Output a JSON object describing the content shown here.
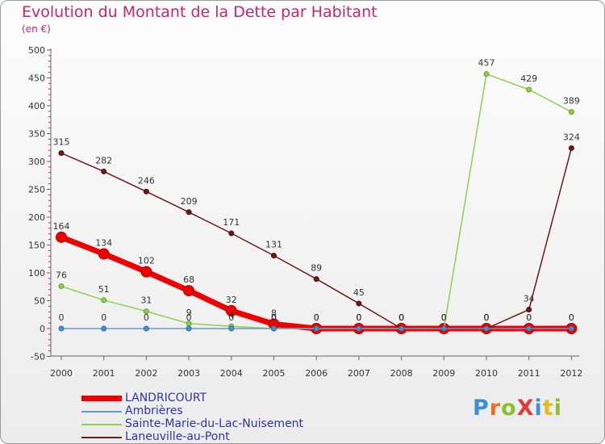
{
  "title": "Evolution du Montant de la Dette par Habitant",
  "subtitle": "(en €)",
  "logo": "ProXiti",
  "chart_data": {
    "type": "line",
    "title": "Evolution du Montant de la Dette par Habitant",
    "ylabel": "(en €)",
    "xlabel": "",
    "ylim": [
      -50,
      500
    ],
    "yticks": [
      -50,
      0,
      50,
      100,
      150,
      200,
      250,
      300,
      350,
      400,
      450,
      500
    ],
    "grid": false,
    "legend_position": "bottom-left",
    "categories": [
      "2000",
      "2001",
      "2002",
      "2003",
      "2004",
      "2005",
      "2006",
      "2007",
      "2008",
      "2009",
      "2010",
      "2011",
      "2012"
    ],
    "series": [
      {
        "name": "LANDRICOURT",
        "color": "#ee0000",
        "values": [
          164,
          134,
          102,
          68,
          32,
          8,
          0,
          0,
          0,
          0,
          0,
          0,
          0
        ],
        "labels": [
          "164",
          "134",
          "102",
          "68",
          "32",
          "8",
          "0",
          "0",
          "0",
          "0",
          "0",
          "0",
          "0"
        ]
      },
      {
        "name": "Ambrières",
        "color": "#6699cc",
        "values": [
          0,
          0,
          0,
          0,
          0,
          0,
          0,
          0,
          0,
          0,
          0,
          0,
          0
        ],
        "labels": [
          "0",
          "0",
          "0",
          "0",
          "0",
          "0",
          "0",
          "0",
          "0",
          "0",
          "0",
          "0",
          "0"
        ]
      },
      {
        "name": "Sainte-Marie-du-Lac-Nuisement",
        "color": "#8fd14f",
        "values": [
          76,
          51,
          31,
          9,
          4,
          0,
          0,
          0,
          0,
          0,
          457,
          429,
          389
        ],
        "labels": [
          "76",
          "51",
          "31",
          "9",
          "4",
          "0",
          "0",
          "0",
          "0",
          "0",
          "457",
          "429",
          "389"
        ]
      },
      {
        "name": "Laneuville-au-Pont",
        "color": "#6b1a1a",
        "values": [
          315,
          282,
          246,
          209,
          171,
          131,
          89,
          45,
          0,
          0,
          0,
          34,
          324
        ],
        "labels": [
          "315",
          "282",
          "246",
          "209",
          "171",
          "131",
          "89",
          "45",
          "0",
          "0",
          "0",
          "34",
          "324"
        ]
      }
    ]
  }
}
